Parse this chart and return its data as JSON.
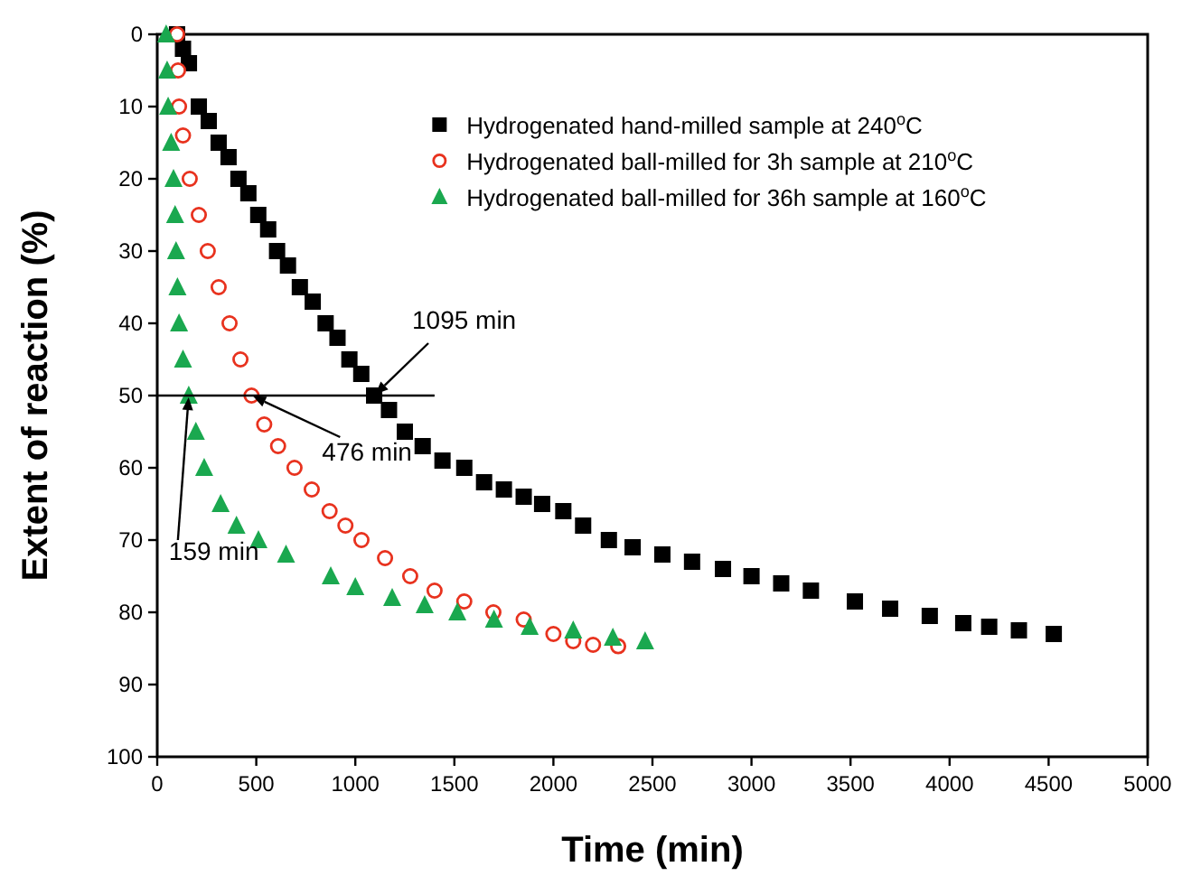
{
  "chart_data": {
    "type": "scatter",
    "xlabel": "Time (min)",
    "ylabel": "Extent of reaction (%)",
    "xlim": [
      0,
      5000
    ],
    "xticks": [
      0,
      500,
      1000,
      1500,
      2000,
      2500,
      3000,
      3500,
      4000,
      4500,
      5000
    ],
    "ylim": [
      100,
      0
    ],
    "yticks": [
      0,
      10,
      20,
      30,
      40,
      50,
      60,
      70,
      80,
      90,
      100
    ],
    "legend": "top right",
    "grid": false,
    "series": [
      {
        "name": "Hydrogenated hand-milled sample at 240$^{o}$C",
        "color": "#000000",
        "marker": "square",
        "x": [
          100,
          130,
          160,
          210,
          260,
          310,
          360,
          410,
          460,
          510,
          560,
          605,
          660,
          720,
          785,
          850,
          910,
          970,
          1030,
          1095,
          1170,
          1250,
          1340,
          1440,
          1550,
          1650,
          1750,
          1850,
          1943,
          2050,
          2150,
          2280,
          2400,
          2550,
          2700,
          2856,
          3000,
          3150,
          3300,
          3522,
          3700,
          3900,
          4069,
          4200,
          4350,
          4526
        ],
        "values": [
          0,
          2,
          4,
          10,
          12,
          15,
          17,
          20,
          22,
          25,
          27,
          30,
          32,
          35,
          37,
          40,
          42,
          45,
          47,
          50,
          52,
          55,
          57,
          59,
          60,
          62,
          63,
          64,
          65,
          66,
          68,
          70,
          71,
          72,
          73,
          74,
          75,
          76,
          77,
          78.5,
          79.5,
          80.5,
          81.5,
          82,
          82.5,
          83
        ]
      },
      {
        "name": "Hydrogenated ball-milled for 3h sample at 210$^{o}$C",
        "color": "#e8321e",
        "marker": "circle",
        "x": [
          100,
          105,
          110,
          130,
          164,
          210,
          255,
          310,
          365,
          420,
          476,
          540,
          610,
          693,
          780,
          870,
          950,
          1031,
          1150,
          1277,
          1400,
          1550,
          1697,
          1850,
          2000,
          2100,
          2200,
          2327
        ],
        "values": [
          0,
          5,
          10,
          14,
          20,
          25,
          30,
          35,
          40,
          45,
          50,
          54,
          57,
          60,
          63,
          66,
          68,
          70,
          72.5,
          75,
          77,
          78.5,
          80,
          81,
          83,
          84,
          84.5,
          84.7
        ]
      },
      {
        "name": "Hydrogenated ball-milled for 36h sample at 160$^{o}$C",
        "color": "#1aa84f",
        "marker": "triangle",
        "x": [
          45,
          50,
          55,
          70,
          82,
          90,
          95,
          102,
          110,
          130,
          159,
          195,
          237,
          320,
          400,
          511,
          650,
          876,
          1000,
          1186,
          1350,
          1515,
          1700,
          1880,
          2100,
          2300,
          2463
        ],
        "values": [
          0,
          5,
          10,
          15,
          20,
          25,
          30,
          35,
          40,
          45,
          50,
          55,
          60,
          65,
          68,
          70,
          72,
          75,
          76.5,
          78,
          79,
          80,
          81,
          82,
          82.5,
          83.5,
          84
        ]
      }
    ],
    "ref_lines": [
      {
        "axis": "y",
        "value": 50,
        "color": "#000000"
      }
    ],
    "annotations": [
      {
        "text": "1095 min",
        "x": 1095,
        "y": 50
      },
      {
        "text": "476 min",
        "x": 476,
        "y": 50
      },
      {
        "text": "159 min",
        "x": 159,
        "y": 50
      }
    ]
  }
}
